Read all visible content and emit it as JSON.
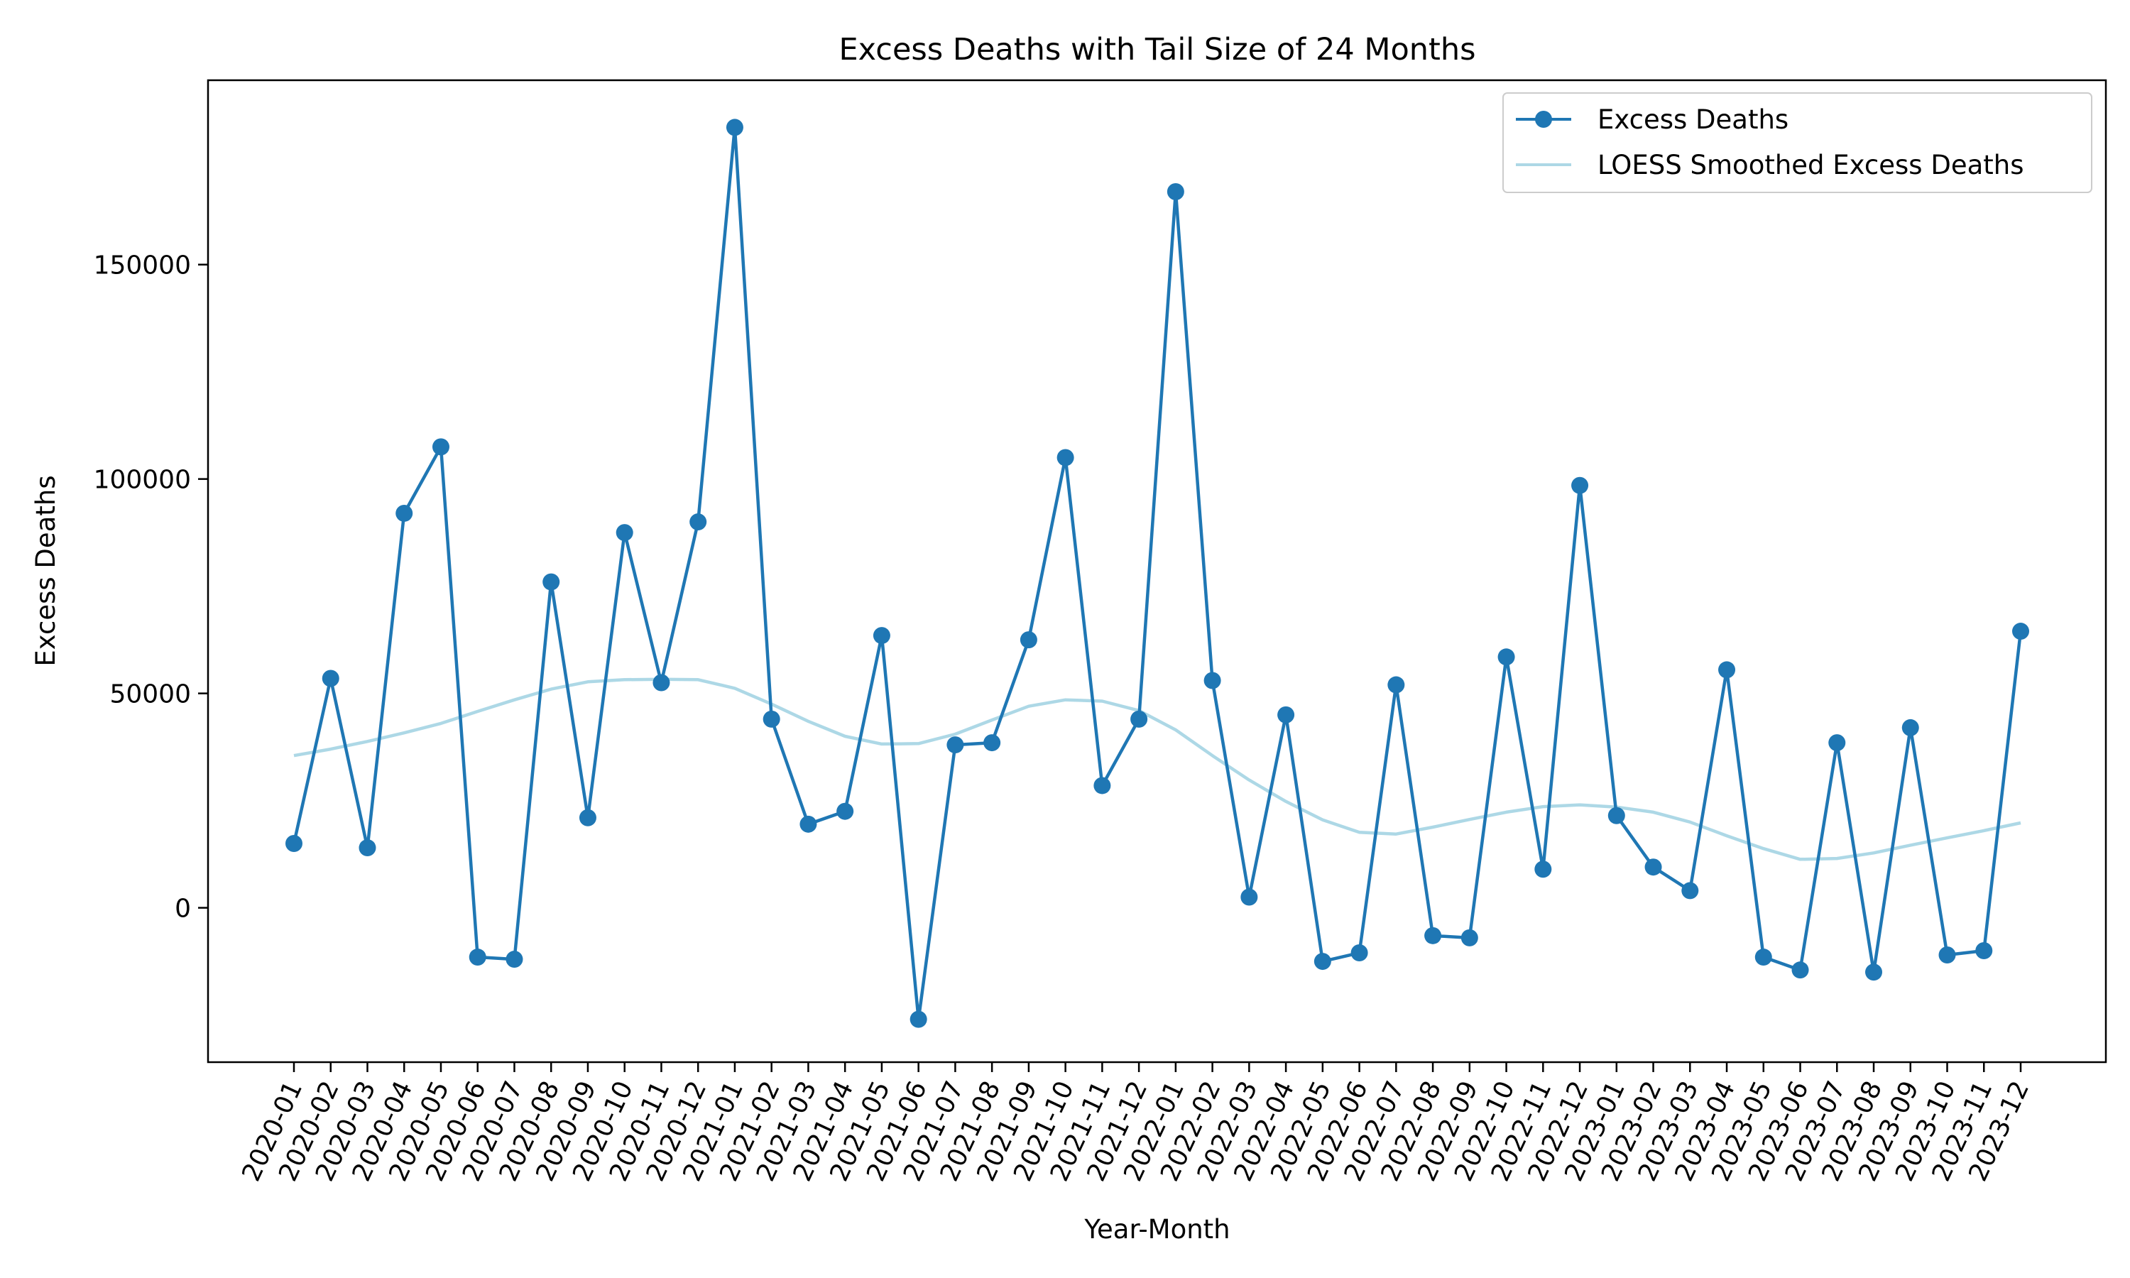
{
  "chart_data": {
    "type": "line",
    "title": "Excess Deaths with Tail Size of 24 Months",
    "xlabel": "Year-Month",
    "ylabel": "Excess Deaths",
    "ylim": [
      -36000,
      193000
    ],
    "yticks": [
      0,
      50000,
      100000,
      150000
    ],
    "grid": false,
    "legend_position": "top-right",
    "categories": [
      "2020-01",
      "2020-02",
      "2020-03",
      "2020-04",
      "2020-05",
      "2020-06",
      "2020-07",
      "2020-08",
      "2020-09",
      "2020-10",
      "2020-11",
      "2020-12",
      "2021-01",
      "2021-02",
      "2021-03",
      "2021-04",
      "2021-05",
      "2021-06",
      "2021-07",
      "2021-08",
      "2021-09",
      "2021-10",
      "2021-11",
      "2021-12",
      "2022-01",
      "2022-02",
      "2022-03",
      "2022-04",
      "2022-05",
      "2022-06",
      "2022-07",
      "2022-08",
      "2022-09",
      "2022-10",
      "2022-11",
      "2022-12",
      "2023-01",
      "2023-02",
      "2023-03",
      "2023-04",
      "2023-05",
      "2023-06",
      "2023-07",
      "2023-08",
      "2023-09",
      "2023-10",
      "2023-11",
      "2023-12"
    ],
    "series": [
      {
        "name": "Excess Deaths",
        "color": "#1f77b4",
        "marker": "circle",
        "values": [
          15000,
          53500,
          14000,
          92000,
          107500,
          -11500,
          -12000,
          76000,
          21000,
          87500,
          52500,
          90000,
          182000,
          44000,
          19500,
          22500,
          63500,
          -26000,
          38000,
          38500,
          62500,
          105000,
          28500,
          44000,
          167000,
          53000,
          2500,
          45000,
          -12500,
          -10500,
          52000,
          -6500,
          -7000,
          58500,
          9000,
          98500,
          21500,
          9500,
          4000,
          55500,
          -11500,
          -14500,
          38500,
          -15000,
          42000,
          -11000,
          -10000,
          64500
        ]
      },
      {
        "name": "LOESS Smoothed Excess Deaths",
        "color": "#add8e6",
        "marker": "none",
        "values": [
          35500,
          37000,
          38800,
          40800,
          43000,
          45800,
          48500,
          51000,
          52700,
          53200,
          53300,
          53200,
          51200,
          47500,
          43500,
          40000,
          38200,
          38300,
          40500,
          43800,
          47000,
          48500,
          48200,
          46000,
          41500,
          35500,
          29800,
          24800,
          20500,
          17600,
          17200,
          18800,
          20600,
          22300,
          23600,
          24000,
          23500,
          22300,
          20000,
          16800,
          13800,
          11300,
          11500,
          12800,
          14600,
          16300,
          18000,
          19800
        ]
      }
    ]
  }
}
